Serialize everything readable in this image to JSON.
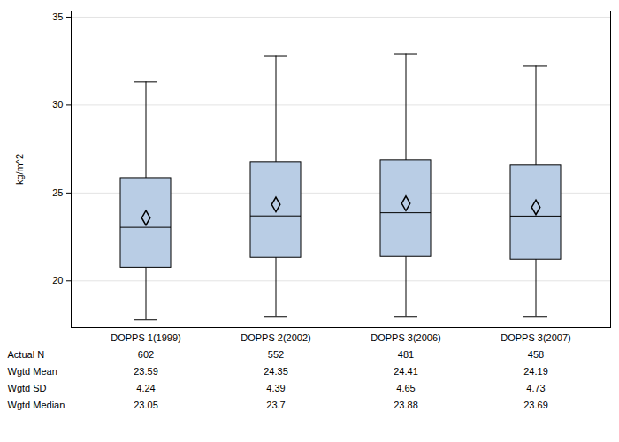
{
  "chart_data": {
    "type": "box",
    "y_label": "kg/m^2",
    "categories": [
      "DOPPS 1(1999)",
      "DOPPS 2(2002)",
      "DOPPS 3(2006)",
      "DOPPS 3(2007)"
    ],
    "whisker_low": [
      17.79,
      17.94,
      17.94,
      17.94
    ],
    "q1": [
      20.75,
      21.31,
      21.36,
      21.21
    ],
    "median": [
      23.05,
      23.7,
      23.88,
      23.69
    ],
    "q3": [
      25.85,
      26.76,
      26.86,
      26.56
    ],
    "whisker_high": [
      31.31,
      32.81,
      32.91,
      32.21
    ],
    "mean": [
      23.59,
      24.35,
      24.41,
      24.19
    ],
    "color": "#b9cde5",
    "marker": "diamond",
    "ylim": [
      17.35,
      35.35
    ],
    "yticks": [
      20,
      25,
      30,
      35
    ],
    "grid": true,
    "table": {
      "rows": [
        {
          "label": "Actual N",
          "values": [
            602,
            552,
            481,
            458
          ]
        },
        {
          "label": "Wgtd Mean",
          "values": [
            23.59,
            24.35,
            24.41,
            24.19
          ]
        },
        {
          "label": "Wgtd SD",
          "values": [
            4.24,
            4.39,
            4.65,
            4.73
          ]
        },
        {
          "label": "Wgtd Median",
          "values": [
            23.05,
            23.7,
            23.88,
            23.69
          ]
        }
      ]
    }
  }
}
